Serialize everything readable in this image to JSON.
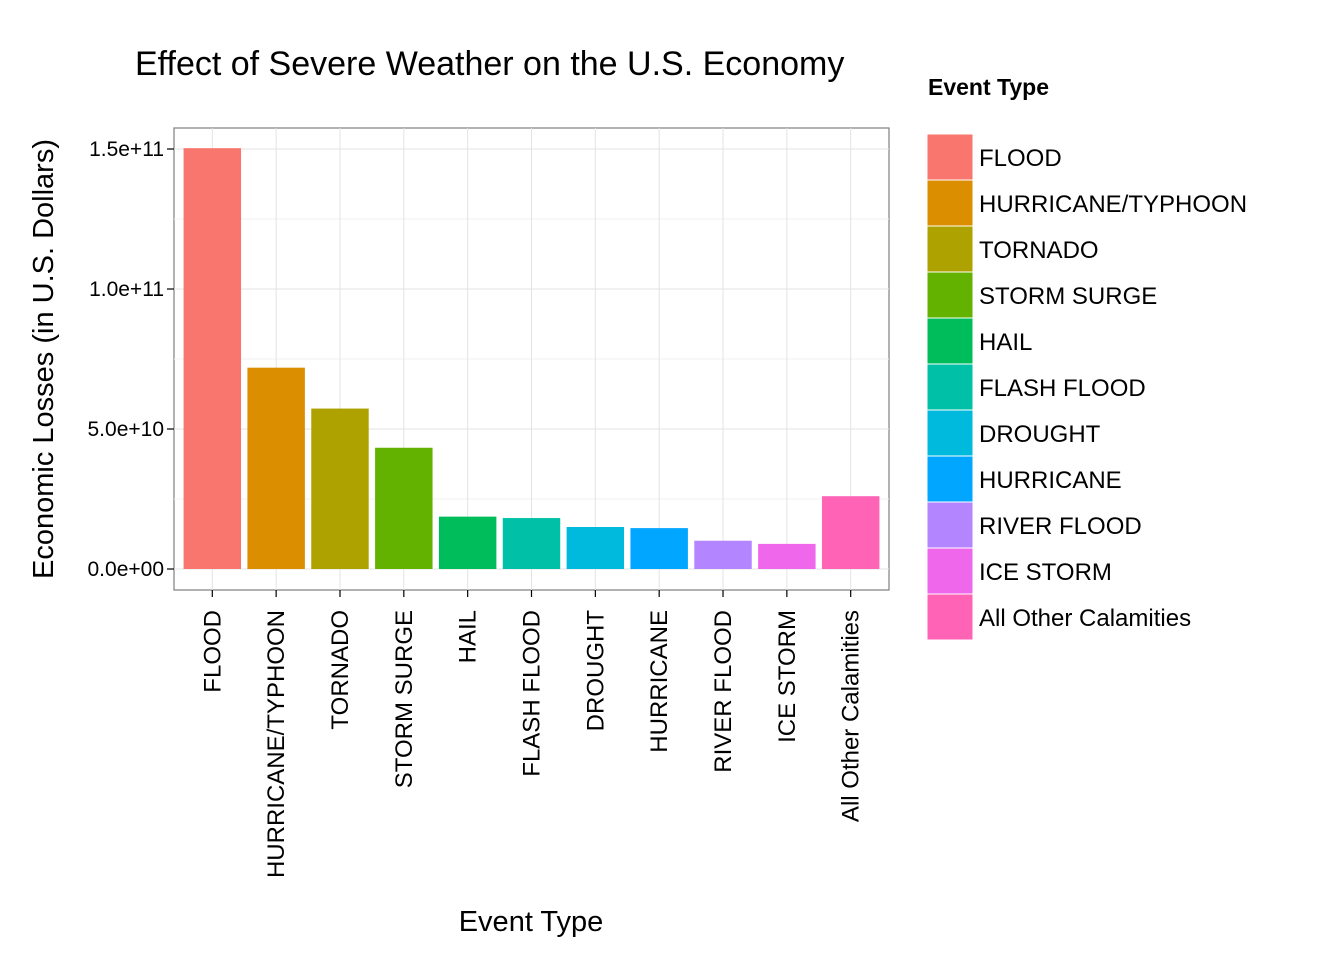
{
  "chart_data": {
    "type": "bar",
    "title": "Effect of Severe Weather on the U.S. Economy",
    "xlabel": "Event Type",
    "ylabel": "Economic Losses (in U.S. Dollars)",
    "ylim": [
      -7500000000,
      157500000000
    ],
    "yticks": [
      0,
      50000000000,
      100000000000,
      150000000000
    ],
    "ytick_labels": [
      "0.0e+00",
      "5.0e+10",
      "1.0e+11",
      "1.5e+11"
    ],
    "grid": true,
    "legend": {
      "title": "Event Type",
      "placement": "right"
    },
    "categories": [
      "FLOOD",
      "HURRICANE/TYPHOON",
      "TORNADO",
      "STORM SURGE",
      "HAIL",
      "FLASH FLOOD",
      "DROUGHT",
      "HURRICANE",
      "RIVER FLOOD",
      "ICE STORM",
      "All Other Calamities"
    ],
    "values": [
      150300000000,
      71900000000,
      57300000000,
      43300000000,
      18700000000,
      18200000000,
      15000000000,
      14600000000,
      10100000000,
      8970000000,
      26000000000
    ],
    "colors": [
      "#F8766D",
      "#DB8E00",
      "#AEA200",
      "#64B200",
      "#00BD5C",
      "#00C1A7",
      "#00BADE",
      "#00A6FF",
      "#B385FF",
      "#EF67EB",
      "#FF63B6"
    ]
  }
}
